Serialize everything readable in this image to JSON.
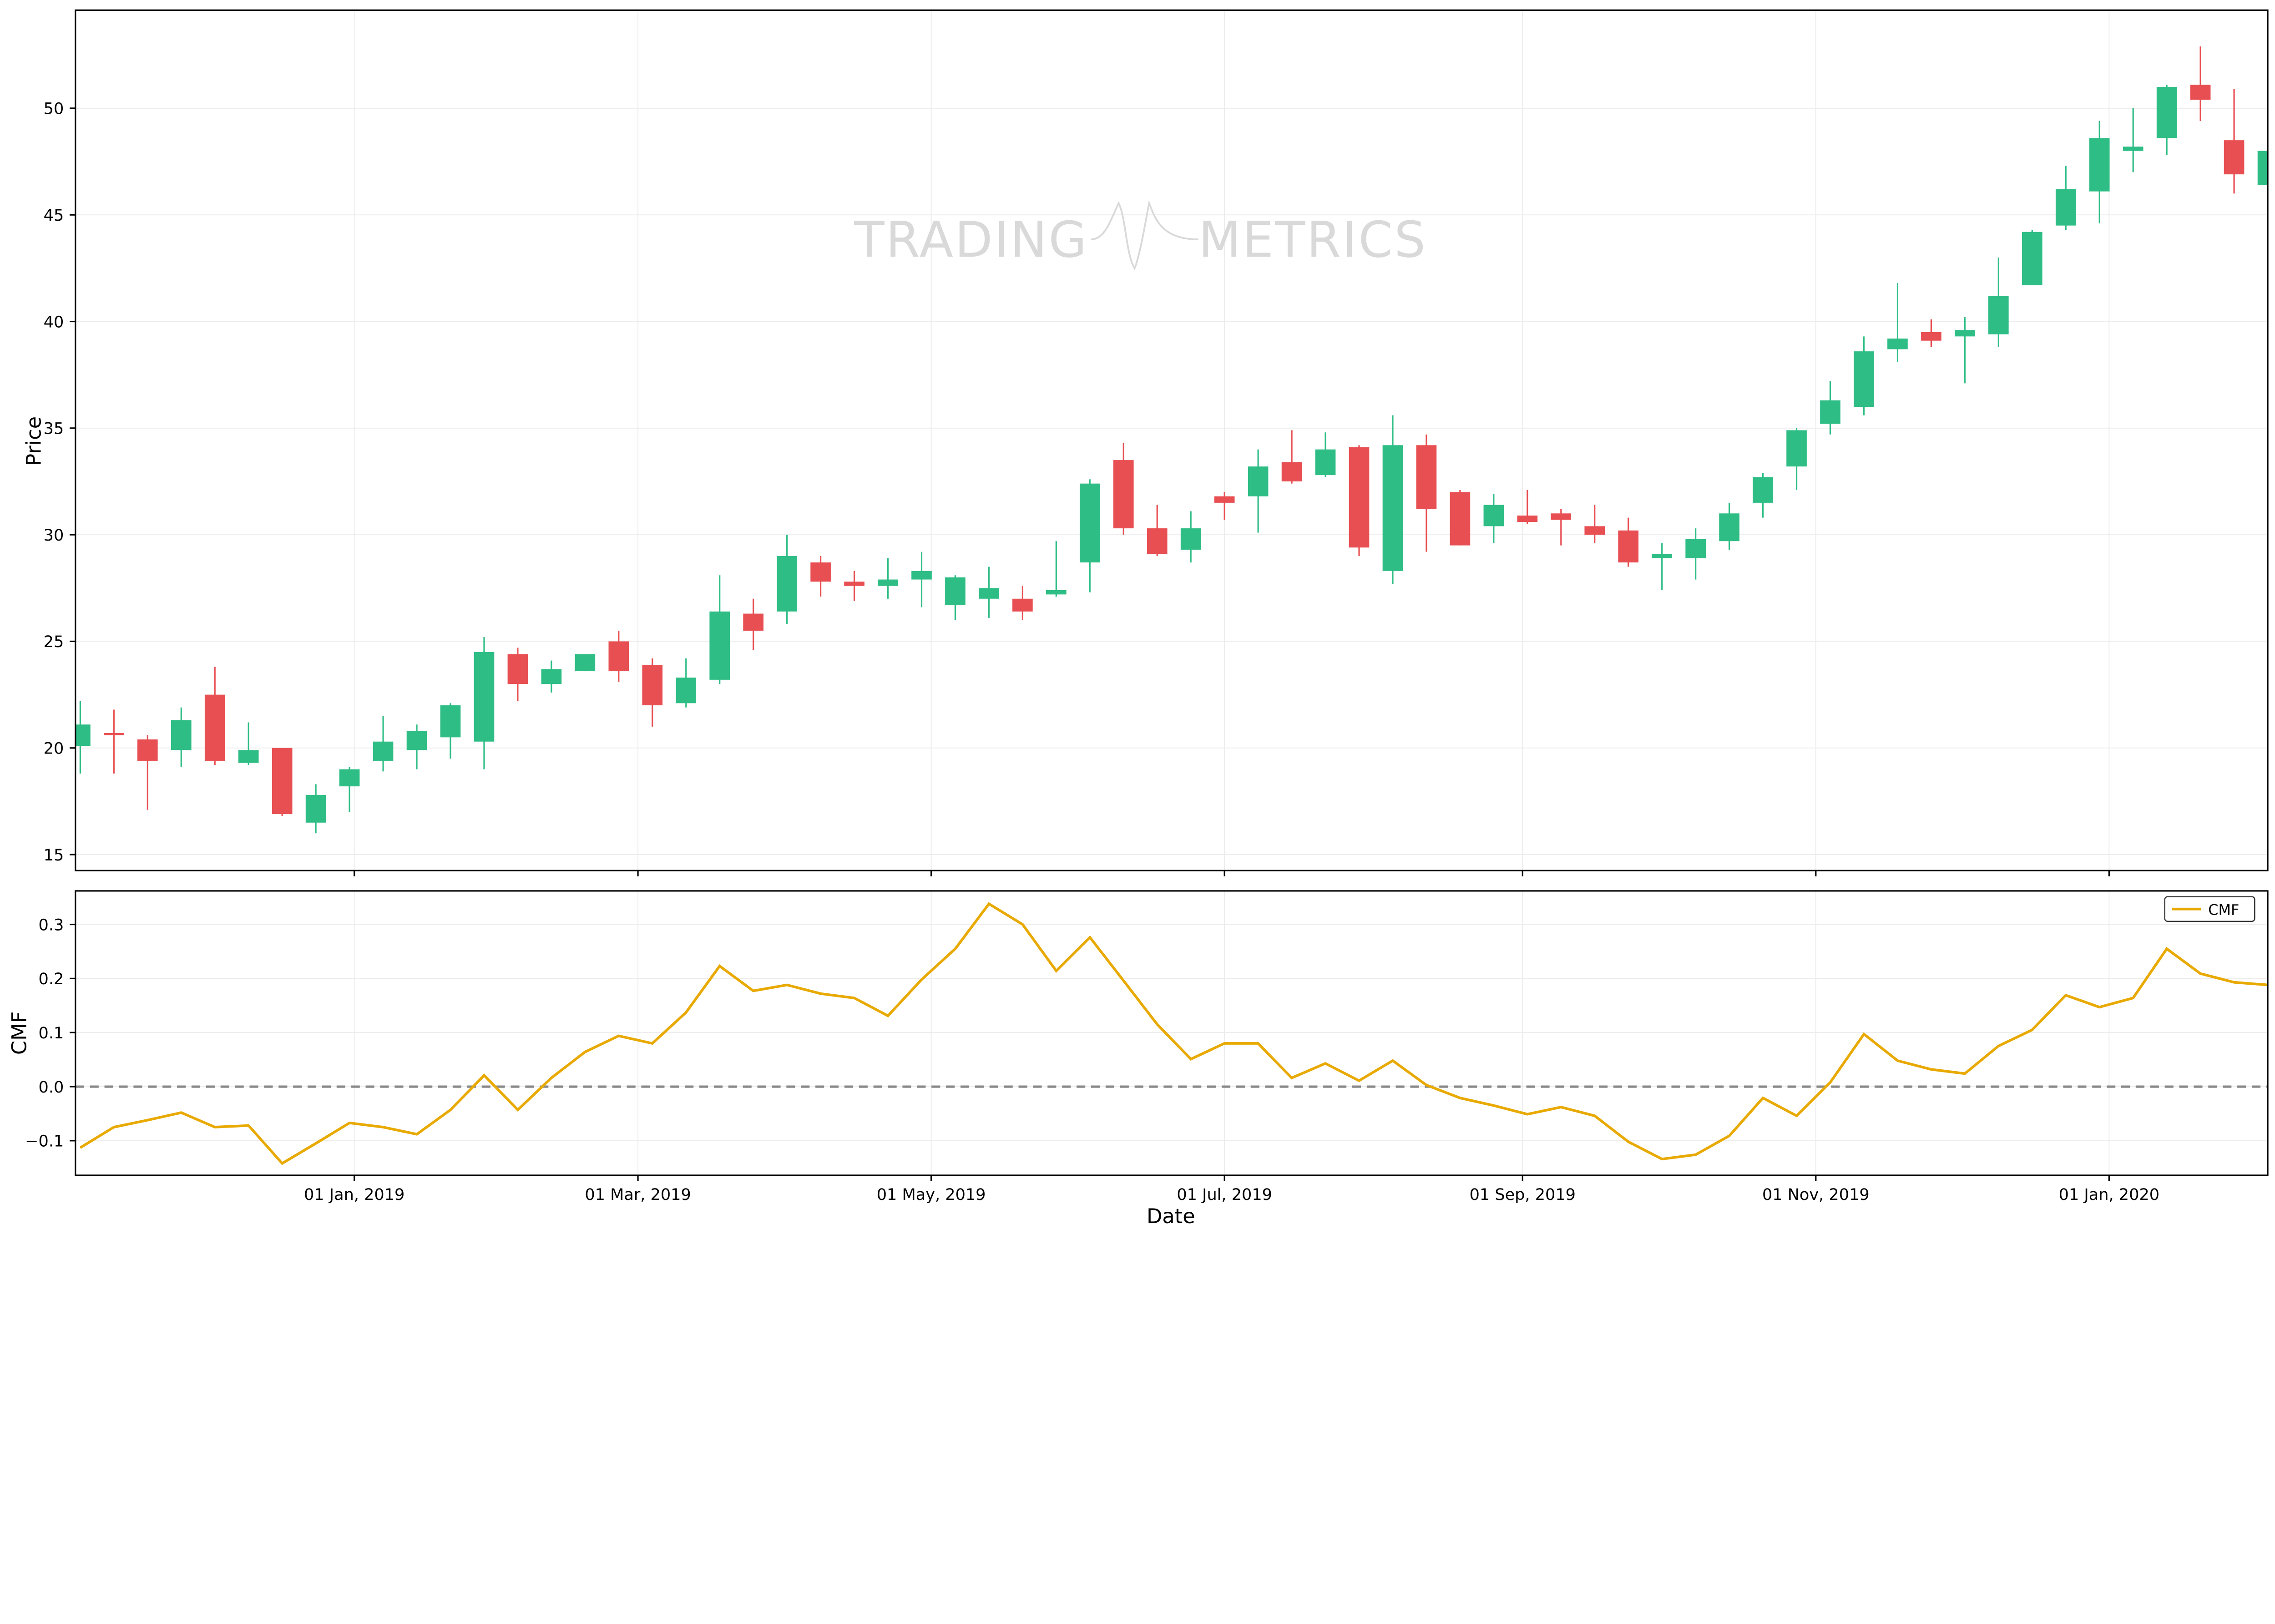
{
  "chart_data": [
    {
      "type": "candlestick",
      "title": "",
      "xlabel": "",
      "ylabel": "Price",
      "ylim": [
        14.25,
        54.6
      ],
      "yticks": [
        15,
        20,
        25,
        30,
        35,
        40,
        45,
        50
      ],
      "xlim": [
        "2018-11-04",
        "2020-02-03"
      ],
      "grid": true,
      "watermark": "TRADING METRICS",
      "watermark_left": "TRADING",
      "watermark_right": "METRICS",
      "colors": {
        "up": "#2ebd85",
        "down": "#e84f52"
      },
      "x": [
        "2018-11-05",
        "2018-11-12",
        "2018-11-19",
        "2018-11-26",
        "2018-12-03",
        "2018-12-10",
        "2018-12-17",
        "2018-12-24",
        "2018-12-31",
        "2019-01-07",
        "2019-01-14",
        "2019-01-21",
        "2019-01-28",
        "2019-02-04",
        "2019-02-11",
        "2019-02-18",
        "2019-02-25",
        "2019-03-04",
        "2019-03-11",
        "2019-03-18",
        "2019-03-25",
        "2019-04-01",
        "2019-04-08",
        "2019-04-15",
        "2019-04-22",
        "2019-04-29",
        "2019-05-06",
        "2019-05-13",
        "2019-05-20",
        "2019-05-27",
        "2019-06-03",
        "2019-06-10",
        "2019-06-17",
        "2019-06-24",
        "2019-07-01",
        "2019-07-08",
        "2019-07-15",
        "2019-07-22",
        "2019-07-29",
        "2019-08-05",
        "2019-08-12",
        "2019-08-19",
        "2019-08-26",
        "2019-09-02",
        "2019-09-09",
        "2019-09-16",
        "2019-09-23",
        "2019-09-30",
        "2019-10-07",
        "2019-10-14",
        "2019-10-21",
        "2019-10-28",
        "2019-11-04",
        "2019-11-11",
        "2019-11-18",
        "2019-11-25",
        "2019-12-02",
        "2019-12-09",
        "2019-12-16",
        "2019-12-23",
        "2019-12-30",
        "2020-01-06",
        "2020-01-13",
        "2020-01-20",
        "2020-01-27",
        "2020-02-03"
      ],
      "open": [
        20.1,
        20.7,
        20.4,
        19.9,
        22.5,
        19.3,
        20.0,
        16.5,
        18.2,
        19.4,
        19.9,
        20.5,
        20.3,
        24.4,
        23.0,
        23.6,
        25.0,
        23.9,
        22.1,
        23.2,
        26.3,
        26.4,
        28.7,
        27.8,
        27.6,
        27.9,
        26.7,
        27.0,
        27.0,
        27.2,
        28.7,
        33.5,
        30.3,
        29.3,
        31.8,
        31.8,
        33.4,
        32.8,
        34.1,
        28.3,
        34.2,
        32.0,
        30.4,
        30.9,
        31.0,
        30.4,
        30.2,
        28.9,
        28.9,
        29.7,
        31.5,
        33.2,
        35.2,
        36.0,
        38.7,
        39.5,
        39.3,
        39.4,
        41.7,
        44.5,
        46.1,
        48.0,
        48.6,
        51.1,
        48.5,
        46.4
      ],
      "high": [
        22.2,
        21.8,
        20.6,
        21.9,
        23.8,
        21.2,
        20.0,
        18.3,
        19.1,
        21.5,
        21.1,
        22.1,
        25.2,
        24.7,
        24.1,
        24.4,
        25.5,
        24.2,
        24.2,
        28.1,
        27.0,
        30.0,
        29.0,
        28.3,
        28.9,
        29.2,
        28.1,
        28.5,
        27.6,
        29.7,
        32.6,
        34.3,
        31.4,
        31.1,
        32.0,
        34.0,
        34.9,
        34.8,
        34.2,
        35.6,
        34.7,
        32.1,
        31.9,
        32.1,
        31.2,
        31.4,
        30.8,
        29.6,
        30.3,
        31.5,
        32.9,
        35.0,
        37.2,
        39.3,
        41.8,
        40.1,
        40.2,
        43.0,
        44.3,
        47.3,
        49.4,
        50.0,
        51.1,
        52.9,
        50.9,
        48.2
      ],
      "low": [
        18.8,
        18.8,
        17.1,
        19.1,
        19.2,
        19.2,
        16.8,
        16.0,
        17.0,
        18.9,
        19.0,
        19.5,
        19.0,
        22.2,
        22.6,
        23.6,
        23.1,
        21.0,
        21.9,
        23.0,
        24.6,
        25.8,
        27.1,
        26.9,
        27.0,
        26.6,
        26.0,
        26.1,
        26.0,
        27.1,
        27.3,
        30.0,
        29.0,
        28.7,
        30.7,
        30.1,
        32.4,
        32.7,
        29.0,
        27.7,
        29.2,
        29.5,
        29.6,
        30.5,
        29.5,
        29.6,
        28.5,
        27.4,
        27.9,
        29.3,
        30.8,
        32.1,
        34.7,
        35.6,
        38.1,
        38.8,
        37.1,
        38.8,
        41.7,
        44.3,
        44.6,
        47.0,
        47.8,
        49.4,
        46.0,
        46.2
      ],
      "close": [
        21.1,
        20.6,
        19.4,
        21.3,
        19.4,
        19.9,
        16.9,
        17.8,
        19.0,
        20.3,
        20.8,
        22.0,
        24.5,
        23.0,
        23.7,
        24.4,
        23.6,
        22.0,
        23.3,
        26.4,
        25.5,
        29.0,
        27.8,
        27.6,
        27.9,
        28.3,
        28.0,
        27.5,
        26.4,
        27.4,
        32.4,
        30.3,
        29.1,
        30.3,
        31.5,
        33.2,
        32.5,
        34.0,
        29.4,
        34.2,
        31.2,
        29.5,
        31.4,
        30.6,
        30.7,
        30.0,
        28.7,
        29.1,
        29.8,
        31.0,
        32.7,
        34.9,
        36.3,
        38.6,
        39.2,
        39.1,
        39.6,
        41.2,
        44.2,
        46.2,
        48.6,
        48.2,
        51.0,
        50.4,
        46.9,
        48.0
      ]
    },
    {
      "type": "line",
      "title": "",
      "xlabel": "Date",
      "ylabel": "CMF",
      "ylim": [
        -0.164,
        0.362
      ],
      "yticks": [
        -0.1,
        0.0,
        0.1,
        0.2,
        0.3
      ],
      "ytick_labels": [
        "−0.1",
        "0.0",
        "0.1",
        "0.2",
        "0.3"
      ],
      "xticks": [
        "2019-01-01",
        "2019-03-01",
        "2019-05-01",
        "2019-07-01",
        "2019-09-01",
        "2019-11-01",
        "2020-01-01"
      ],
      "xtick_labels": [
        "01 Jan, 2019",
        "01 Mar, 2019",
        "01 May, 2019",
        "01 Jul, 2019",
        "01 Sep, 2019",
        "01 Nov, 2019",
        "01 Jan, 2020"
      ],
      "reference_line": 0.0,
      "grid": true,
      "legend": {
        "position": "top-right",
        "entries": [
          "CMF"
        ]
      },
      "series": [
        {
          "name": "CMF",
          "color": "#e8a900",
          "values": [
            -0.113,
            -0.075,
            -0.062,
            -0.048,
            -0.075,
            -0.072,
            -0.142,
            -0.105,
            -0.067,
            -0.075,
            -0.088,
            -0.043,
            0.021,
            -0.043,
            0.016,
            0.064,
            0.094,
            0.08,
            0.137,
            0.223,
            0.177,
            0.188,
            0.172,
            0.164,
            0.131,
            0.198,
            0.255,
            0.338,
            0.3,
            0.214,
            0.276,
            0.196,
            0.115,
            0.051,
            0.08,
            0.08,
            0.016,
            0.043,
            0.011,
            0.048,
            0.003,
            -0.021,
            -0.035,
            -0.051,
            -0.038,
            -0.054,
            -0.102,
            -0.134,
            -0.126,
            -0.091,
            -0.021,
            -0.054,
            0.008,
            0.097,
            0.048,
            0.032,
            0.024,
            0.075,
            0.105,
            0.169,
            0.147,
            0.164,
            0.255,
            0.209,
            0.193,
            0.188
          ]
        }
      ]
    }
  ]
}
